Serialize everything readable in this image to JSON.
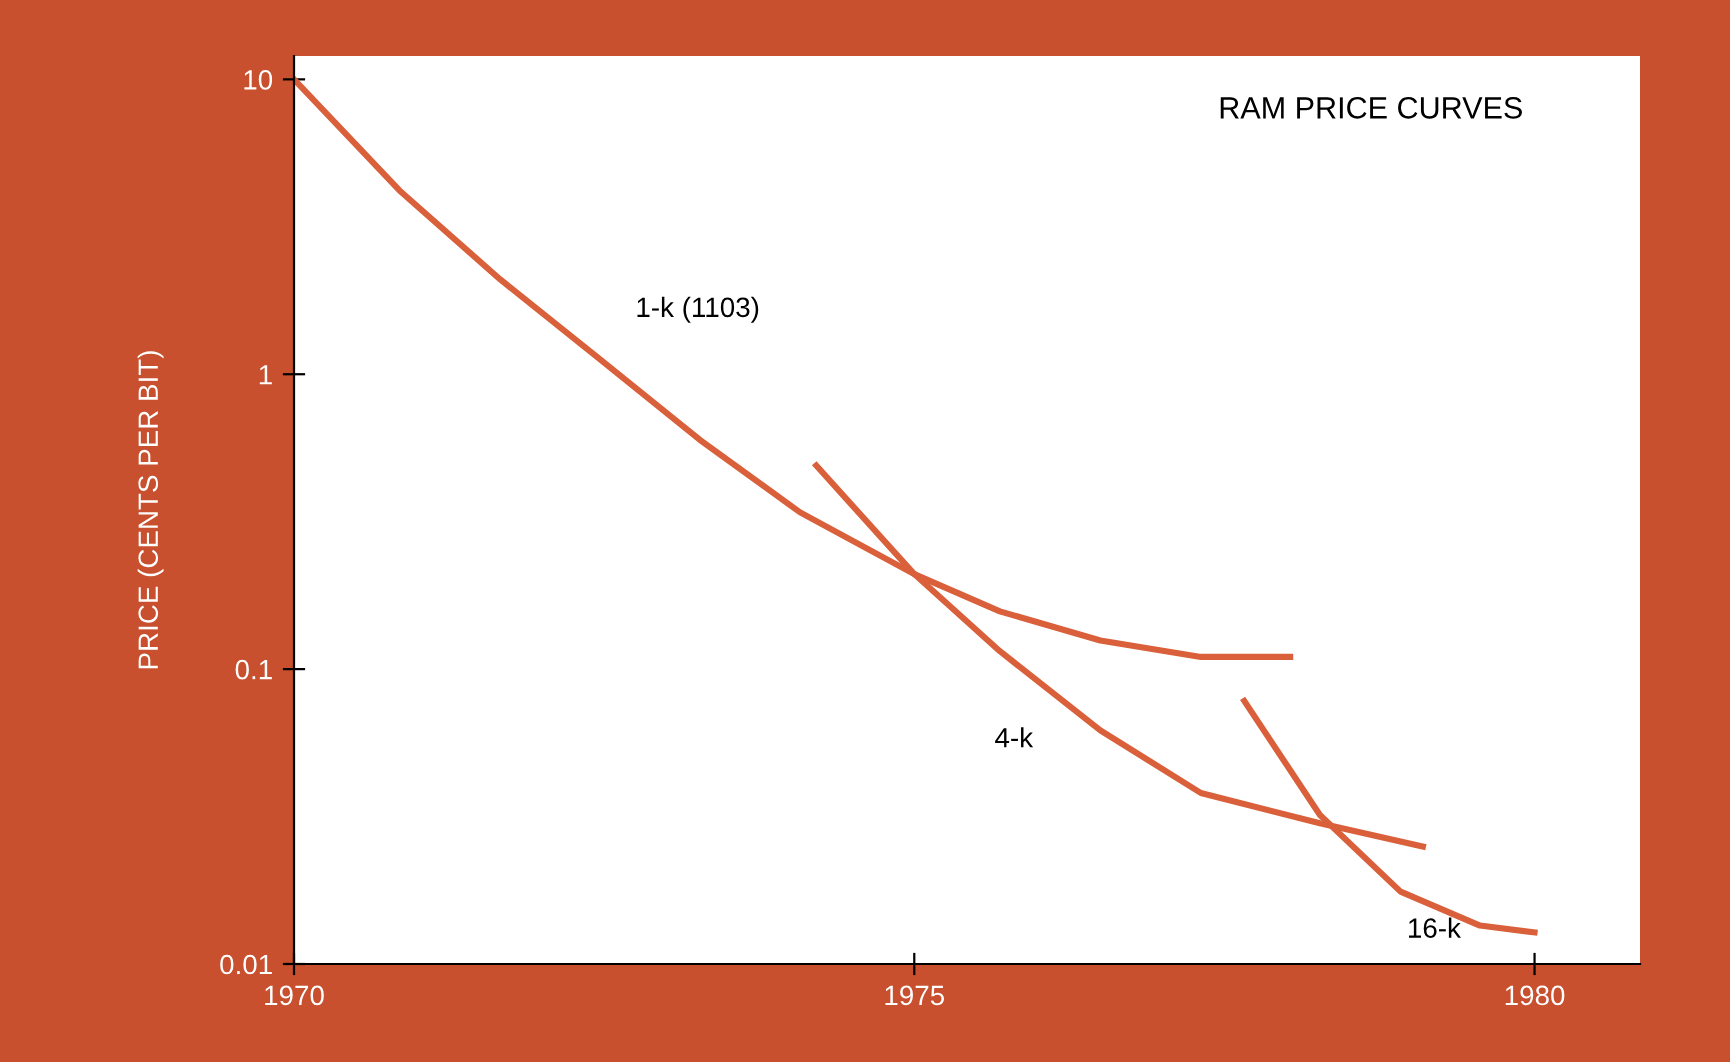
{
  "chart_data": {
    "type": "line",
    "title": "RAM PRICE CURVES",
    "ylabel": "PRICE (CENTS PER BIT)",
    "log": "y",
    "grid": false,
    "legend": false,
    "marker": "none",
    "line_style": "solid",
    "xlim": [
      1970,
      1980.85
    ],
    "xticks": [
      1970,
      1975,
      1980
    ],
    "ylim": [
      0.01,
      12
    ],
    "yticks": [
      {
        "value": 0.01,
        "label": "0.01"
      },
      {
        "value": 0.1,
        "label": "0.1"
      },
      1,
      10
    ],
    "series": [
      {
        "name": "1-k (1103)",
        "color": "#d9603b",
        "x": [
          1970,
          1970.85,
          1971.66,
          1972.47,
          1973.27,
          1974.08,
          1975.0,
          1975.69,
          1976.5,
          1977.31,
          1978.03
        ],
        "values": [
          10,
          4.2,
          2.1,
          1.12,
          0.6,
          0.34,
          0.21,
          0.157,
          0.125,
          0.11,
          0.11
        ]
      },
      {
        "name": "4-k",
        "color": "#d9603b",
        "x": [
          1974.21,
          1975.0,
          1975.69,
          1976.5,
          1977.31,
          1978.27,
          1979.1
        ],
        "values": [
          0.49,
          0.21,
          0.115,
          0.062,
          0.038,
          0.03,
          0.025
        ]
      },
      {
        "name": "16-k",
        "color": "#d9603b",
        "x": [
          1977.66,
          1978.27,
          1978.92,
          1979.56,
          1980.0
        ],
        "values": [
          0.078,
          0.032,
          0.0176,
          0.0135,
          0.0128
        ]
      }
    ]
  }
}
